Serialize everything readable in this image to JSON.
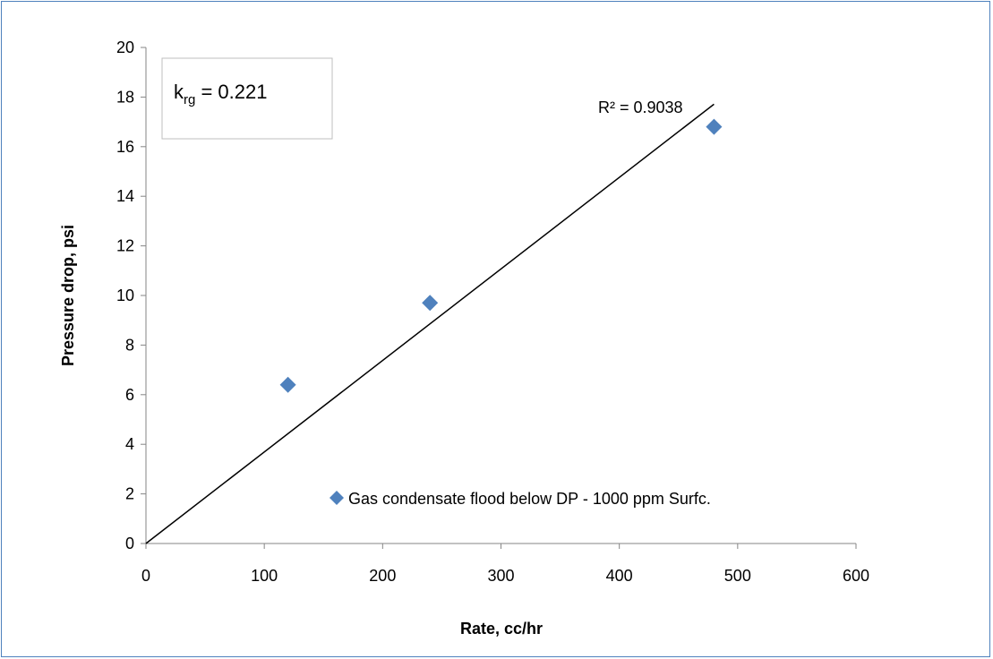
{
  "chart_data": {
    "type": "scatter",
    "title": "",
    "xlabel": "Rate, cc/hr",
    "ylabel": "Pressure drop, psi",
    "xlim": [
      0,
      600
    ],
    "ylim": [
      0,
      20
    ],
    "x_ticks": [
      0,
      100,
      200,
      300,
      400,
      500,
      600
    ],
    "y_ticks": [
      0,
      2,
      4,
      6,
      8,
      10,
      12,
      14,
      16,
      18,
      20
    ],
    "grid": false,
    "legend_position": "bottom-right",
    "series": [
      {
        "name": "Gas condensate flood below DP - 1000 ppm Surfc.",
        "marker": "diamond",
        "color": "#4f81bd",
        "points": [
          {
            "x": 120,
            "y": 6.4
          },
          {
            "x": 240,
            "y": 9.7
          },
          {
            "x": 480,
            "y": 16.8
          }
        ]
      }
    ],
    "trendline": {
      "type": "linear",
      "through_origin": true,
      "x_range": [
        0,
        480
      ],
      "slope": 0.0369,
      "color": "#000000",
      "r_squared_label": "R² = 0.9038"
    },
    "textbox": {
      "k_main": "k",
      "k_sub": "rg",
      "k_rest": " = 0.221"
    }
  }
}
